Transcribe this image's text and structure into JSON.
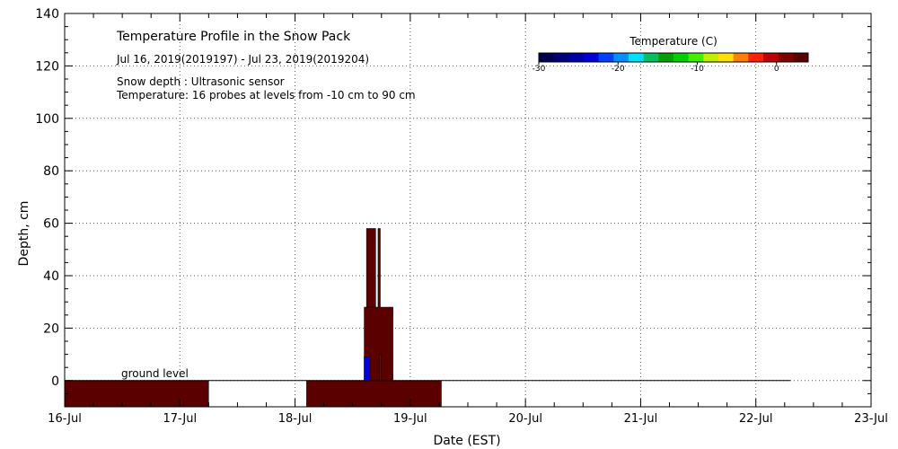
{
  "chart_data": {
    "type": "heatmap",
    "title": "Temperature Profile in the Snow Pack",
    "subtitle": "Jul 16, 2019(2019197) - Jul 23, 2019(2019204)",
    "notes": [
      "Snow depth : Ultrasonic sensor",
      "Temperature: 16 probes at levels from -10 cm to 90 cm"
    ],
    "annotation": "ground level",
    "xlabel": "Date (EST)",
    "ylabel": "Depth, cm",
    "x_ticks": [
      "16-Jul",
      "17-Jul",
      "18-Jul",
      "19-Jul",
      "20-Jul",
      "21-Jul",
      "22-Jul",
      "23-Jul"
    ],
    "xlim": [
      "16-Jul",
      "23-Jul"
    ],
    "ylim": [
      -10,
      140
    ],
    "y_ticks": [
      0,
      20,
      40,
      60,
      80,
      100,
      120,
      140
    ],
    "grid": true,
    "colorbar": {
      "label": "Temperature (C)",
      "ticks": [
        -30,
        -20,
        -10,
        0
      ],
      "range": [
        -30,
        4
      ],
      "colors": [
        "#000050",
        "#00007a",
        "#0000a8",
        "#0000d8",
        "#0040ff",
        "#0090ff",
        "#00e0ff",
        "#00c060",
        "#00a000",
        "#00d000",
        "#40f000",
        "#c0f000",
        "#ffe000",
        "#ff8000",
        "#ff2000",
        "#c00000",
        "#800000",
        "#5a0000"
      ]
    },
    "ground_line": {
      "y": 0,
      "x_start": 0,
      "x_end": 6.3
    },
    "series": [
      {
        "cells": [
          {
            "x": [
              0.0,
              1.25
            ],
            "y": [
              -10,
              0
            ],
            "temp": 3
          },
          {
            "x": [
              2.1,
              3.27
            ],
            "y": [
              -10,
              0
            ],
            "temp": 3
          },
          {
            "x": [
              2.6,
              2.85
            ],
            "y": [
              0,
              28
            ],
            "temp": 3
          },
          {
            "x": [
              2.62,
              2.7
            ],
            "y": [
              28,
              58
            ],
            "temp": 3
          },
          {
            "x": [
              2.72,
              2.74
            ],
            "y": [
              28,
              58
            ],
            "temp": 3
          },
          {
            "x": [
              2.73,
              2.75
            ],
            "y": [
              0,
              10
            ],
            "temp": 2
          },
          {
            "x": [
              2.6,
              2.65
            ],
            "y": [
              0,
              9
            ],
            "temp": -24
          }
        ]
      }
    ]
  }
}
